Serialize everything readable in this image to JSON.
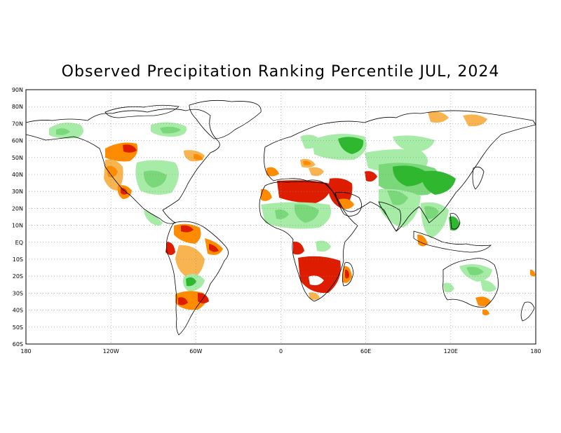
{
  "title": "Observed Precipitation Ranking Percentile JUL, 2024",
  "colors": {
    "very_dry": "#dd1c00",
    "dry": "#ff8c00",
    "slightly_dry": "#f8b450",
    "slightly_wet": "#a6eca6",
    "wet": "#7ad77a",
    "very_wet": "#2fb82f",
    "land_outline": "#000000",
    "grid": "#888888"
  },
  "axes": {
    "lat_labels": [
      "90N",
      "80N",
      "70N",
      "60N",
      "50N",
      "40N",
      "30N",
      "20N",
      "10N",
      "EQ",
      "10S",
      "20S",
      "30S",
      "40S",
      "50S",
      "60S"
    ],
    "lon_labels": [
      "180",
      "120W",
      "60W",
      "0",
      "60E",
      "120E",
      "180"
    ]
  }
}
